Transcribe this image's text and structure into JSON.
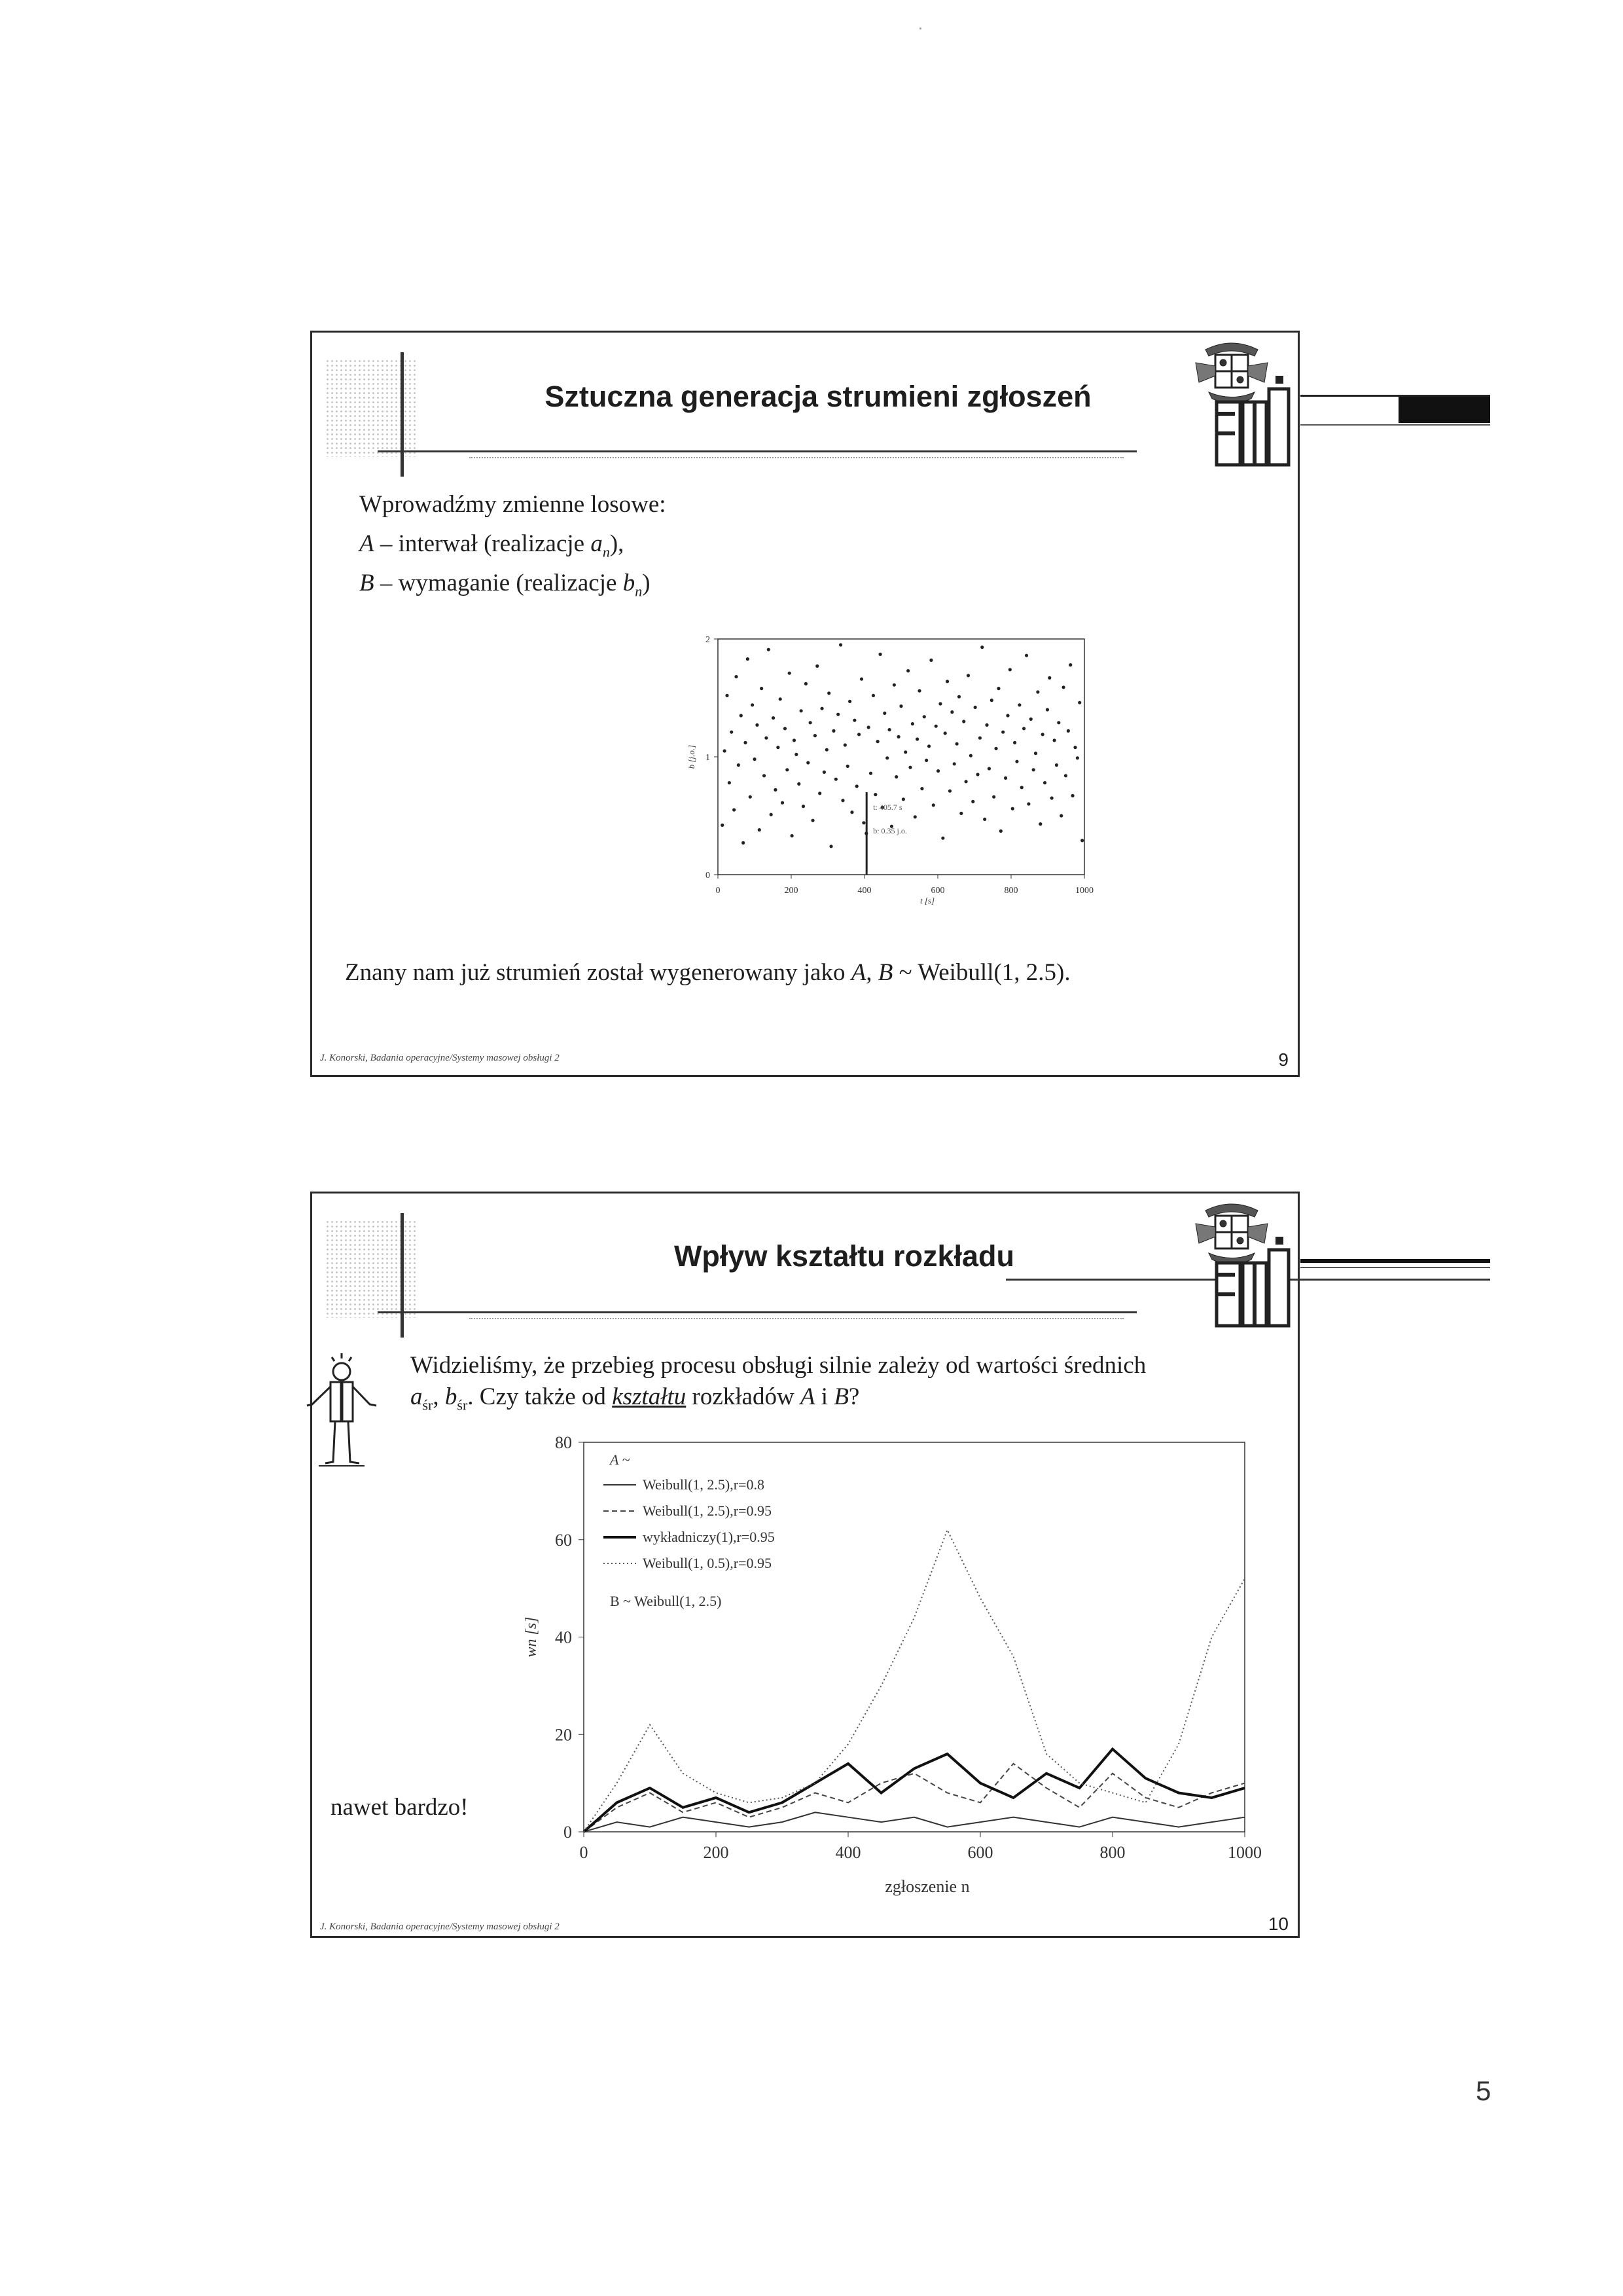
{
  "page_number": "5",
  "slides": [
    {
      "title": "Sztuczna generacja strumieni zgłoszeń",
      "intro": "Wprowadźmy zmienne losowe:",
      "var_a": {
        "sym": "A",
        "text": " – interwał (realizacje ",
        "sub_sym": "a",
        "sub": "n",
        "tail": "),"
      },
      "var_b": {
        "sym": "B",
        "text": " – wymaganie (realizacje ",
        "sub_sym": "b",
        "sub": "n",
        "tail": ")"
      },
      "conclusion": {
        "pre": "Znany nam już strumień został wygenerowany jako ",
        "syms": "A, B",
        "post": " ~ Weibull(1, 2.5)."
      },
      "footer": "J. Konorski, Badania operacyjne/Systemy masowej obsługi 2",
      "number": "9"
    },
    {
      "title": "Wpływ kształtu rozkładu",
      "text_line1": "Widzieliśmy, że przebieg procesu obsługi silnie zależy od wartości średnich",
      "text_a": "a",
      "text_sub": "śr",
      "text_comma": ", ",
      "text_b": "b",
      "text_sub2": "śr",
      "text_mid": ". Czy także od ",
      "text_kszt": "kształtu",
      "text_after": " rozkładów ",
      "text_A": "A",
      "text_i": " i ",
      "text_B": "B",
      "text_q": "?",
      "side_note": "nawet bardzo!",
      "footer": "J. Konorski, Badania operacyjne/Systemy masowej obsługi 2",
      "number": "10"
    }
  ],
  "chart_data": [
    {
      "type": "scatter",
      "xlabel": "t [s]",
      "ylabel": "b [j.o.]",
      "xlim": [
        0,
        1000
      ],
      "ylim": [
        0,
        2
      ],
      "x_ticks": [
        "0",
        "200",
        "400",
        "600",
        "800",
        "1000"
      ],
      "y_ticks": [
        "0",
        "1",
        "2"
      ],
      "annotation": [
        "t: 405.7 s",
        "b: 0.35 j.o."
      ],
      "series": [
        {
          "points": [
            [
              12,
              0.42
            ],
            [
              18,
              1.05
            ],
            [
              25,
              1.52
            ],
            [
              31,
              0.78
            ],
            [
              37,
              1.21
            ],
            [
              44,
              0.55
            ],
            [
              50,
              1.68
            ],
            [
              56,
              0.93
            ],
            [
              63,
              1.35
            ],
            [
              69,
              0.27
            ],
            [
              75,
              1.12
            ],
            [
              81,
              1.83
            ],
            [
              88,
              0.66
            ],
            [
              94,
              1.44
            ],
            [
              100,
              0.98
            ],
            [
              107,
              1.27
            ],
            [
              113,
              0.38
            ],
            [
              119,
              1.58
            ],
            [
              126,
              0.84
            ],
            [
              132,
              1.16
            ],
            [
              138,
              1.91
            ],
            [
              145,
              0.51
            ],
            [
              151,
              1.33
            ],
            [
              157,
              0.72
            ],
            [
              164,
              1.08
            ],
            [
              170,
              1.49
            ],
            [
              176,
              0.61
            ],
            [
              183,
              1.24
            ],
            [
              189,
              0.89
            ],
            [
              195,
              1.71
            ],
            [
              202,
              0.33
            ],
            [
              208,
              1.14
            ],
            [
              214,
              1.02
            ],
            [
              221,
              0.77
            ],
            [
              227,
              1.39
            ],
            [
              233,
              0.58
            ],
            [
              240,
              1.62
            ],
            [
              246,
              0.95
            ],
            [
              252,
              1.29
            ],
            [
              259,
              0.46
            ],
            [
              265,
              1.18
            ],
            [
              271,
              1.77
            ],
            [
              278,
              0.69
            ],
            [
              284,
              1.41
            ],
            [
              290,
              0.87
            ],
            [
              297,
              1.06
            ],
            [
              303,
              1.54
            ],
            [
              309,
              0.24
            ],
            [
              316,
              1.22
            ],
            [
              322,
              0.81
            ],
            [
              328,
              1.36
            ],
            [
              335,
              1.95
            ],
            [
              341,
              0.63
            ],
            [
              347,
              1.1
            ],
            [
              354,
              0.92
            ],
            [
              360,
              1.47
            ],
            [
              366,
              0.53
            ],
            [
              373,
              1.31
            ],
            [
              379,
              0.75
            ],
            [
              385,
              1.19
            ],
            [
              392,
              1.66
            ],
            [
              398,
              0.44
            ],
            [
              405,
              0.35
            ],
            [
              411,
              1.25
            ],
            [
              417,
              0.86
            ],
            [
              424,
              1.52
            ],
            [
              430,
              0.68
            ],
            [
              436,
              1.13
            ],
            [
              443,
              1.87
            ],
            [
              449,
              0.57
            ],
            [
              455,
              1.37
            ],
            [
              462,
              0.99
            ],
            [
              468,
              1.23
            ],
            [
              474,
              0.41
            ],
            [
              481,
              1.61
            ],
            [
              487,
              0.83
            ],
            [
              493,
              1.17
            ],
            [
              500,
              1.43
            ],
            [
              506,
              0.64
            ],
            [
              512,
              1.04
            ],
            [
              519,
              1.73
            ],
            [
              525,
              0.91
            ],
            [
              531,
              1.28
            ],
            [
              538,
              0.49
            ],
            [
              544,
              1.15
            ],
            [
              550,
              1.56
            ],
            [
              557,
              0.73
            ],
            [
              563,
              1.34
            ],
            [
              569,
              0.97
            ],
            [
              576,
              1.09
            ],
            [
              582,
              1.82
            ],
            [
              588,
              0.59
            ],
            [
              595,
              1.26
            ],
            [
              601,
              0.88
            ],
            [
              607,
              1.45
            ],
            [
              614,
              0.31
            ],
            [
              620,
              1.2
            ],
            [
              626,
              1.64
            ],
            [
              633,
              0.71
            ],
            [
              639,
              1.38
            ],
            [
              645,
              0.94
            ],
            [
              652,
              1.11
            ],
            [
              658,
              1.51
            ],
            [
              664,
              0.52
            ],
            [
              671,
              1.3
            ],
            [
              677,
              0.79
            ],
            [
              683,
              1.69
            ],
            [
              690,
              1.01
            ],
            [
              696,
              0.62
            ],
            [
              702,
              1.42
            ],
            [
              709,
              0.85
            ],
            [
              715,
              1.16
            ],
            [
              721,
              1.93
            ],
            [
              728,
              0.47
            ],
            [
              734,
              1.27
            ],
            [
              740,
              0.9
            ],
            [
              747,
              1.48
            ],
            [
              753,
              0.66
            ],
            [
              759,
              1.07
            ],
            [
              766,
              1.58
            ],
            [
              772,
              0.37
            ],
            [
              778,
              1.21
            ],
            [
              785,
              0.82
            ],
            [
              791,
              1.35
            ],
            [
              797,
              1.74
            ],
            [
              804,
              0.56
            ],
            [
              810,
              1.12
            ],
            [
              816,
              0.96
            ],
            [
              823,
              1.44
            ],
            [
              829,
              0.74
            ],
            [
              835,
              1.24
            ],
            [
              842,
              1.86
            ],
            [
              848,
              0.6
            ],
            [
              854,
              1.32
            ],
            [
              861,
              0.89
            ],
            [
              867,
              1.03
            ],
            [
              873,
              1.55
            ],
            [
              880,
              0.43
            ],
            [
              886,
              1.19
            ],
            [
              892,
              0.78
            ],
            [
              899,
              1.4
            ],
            [
              905,
              1.67
            ],
            [
              911,
              0.65
            ],
            [
              918,
              1.14
            ],
            [
              924,
              0.93
            ],
            [
              930,
              1.29
            ],
            [
              937,
              0.5
            ],
            [
              943,
              1.59
            ],
            [
              949,
              0.84
            ],
            [
              956,
              1.22
            ],
            [
              962,
              1.78
            ],
            [
              968,
              0.67
            ],
            [
              975,
              1.08
            ],
            [
              981,
              0.99
            ],
            [
              987,
              1.46
            ],
            [
              994,
              0.29
            ]
          ]
        }
      ]
    },
    {
      "type": "line",
      "xlabel": "zgłoszenie n",
      "ylabel": "wn [s]",
      "xlim": [
        0,
        1000
      ],
      "ylim": [
        0,
        80
      ],
      "x_ticks": [
        "0",
        "200",
        "400",
        "600",
        "800",
        "1000"
      ],
      "y_ticks": [
        "0",
        "20",
        "40",
        "60",
        "80"
      ],
      "legend_title": "A ~",
      "legend_placement": "top-left",
      "legend_footer": "B ~ Weibull(1, 2.5)",
      "series": [
        {
          "name": "Weibull(1, 2.5),r=0.8",
          "style": "solid-thin",
          "x": [
            0,
            50,
            100,
            150,
            200,
            250,
            300,
            350,
            400,
            450,
            500,
            550,
            600,
            650,
            700,
            750,
            800,
            850,
            900,
            950,
            1000
          ],
          "y": [
            0,
            2,
            1,
            3,
            2,
            1,
            2,
            4,
            3,
            2,
            3,
            1,
            2,
            3,
            2,
            1,
            3,
            2,
            1,
            2,
            3
          ]
        },
        {
          "name": "Weibull(1, 2.5),r=0.95",
          "style": "dashed",
          "x": [
            0,
            50,
            100,
            150,
            200,
            250,
            300,
            350,
            400,
            450,
            500,
            550,
            600,
            650,
            700,
            750,
            800,
            850,
            900,
            950,
            1000
          ],
          "y": [
            0,
            5,
            8,
            4,
            6,
            3,
            5,
            8,
            6,
            10,
            12,
            8,
            6,
            14,
            9,
            5,
            12,
            7,
            5,
            8,
            10
          ]
        },
        {
          "name": "wykładniczy(1),r=0.95",
          "style": "solid-thick",
          "x": [
            0,
            50,
            100,
            150,
            200,
            250,
            300,
            350,
            400,
            450,
            500,
            550,
            600,
            650,
            700,
            750,
            800,
            850,
            900,
            950,
            1000
          ],
          "y": [
            0,
            6,
            9,
            5,
            7,
            4,
            6,
            10,
            14,
            8,
            13,
            16,
            10,
            7,
            12,
            9,
            17,
            11,
            8,
            7,
            9
          ]
        },
        {
          "name": "Weibull(1, 0.5),r=0.95",
          "style": "dotted",
          "x": [
            0,
            50,
            100,
            150,
            200,
            250,
            300,
            350,
            400,
            450,
            500,
            550,
            600,
            650,
            700,
            750,
            800,
            850,
            900,
            950,
            1000
          ],
          "y": [
            0,
            10,
            22,
            12,
            8,
            6,
            7,
            10,
            18,
            30,
            44,
            62,
            48,
            36,
            16,
            10,
            8,
            6,
            18,
            40,
            52
          ]
        }
      ]
    }
  ]
}
